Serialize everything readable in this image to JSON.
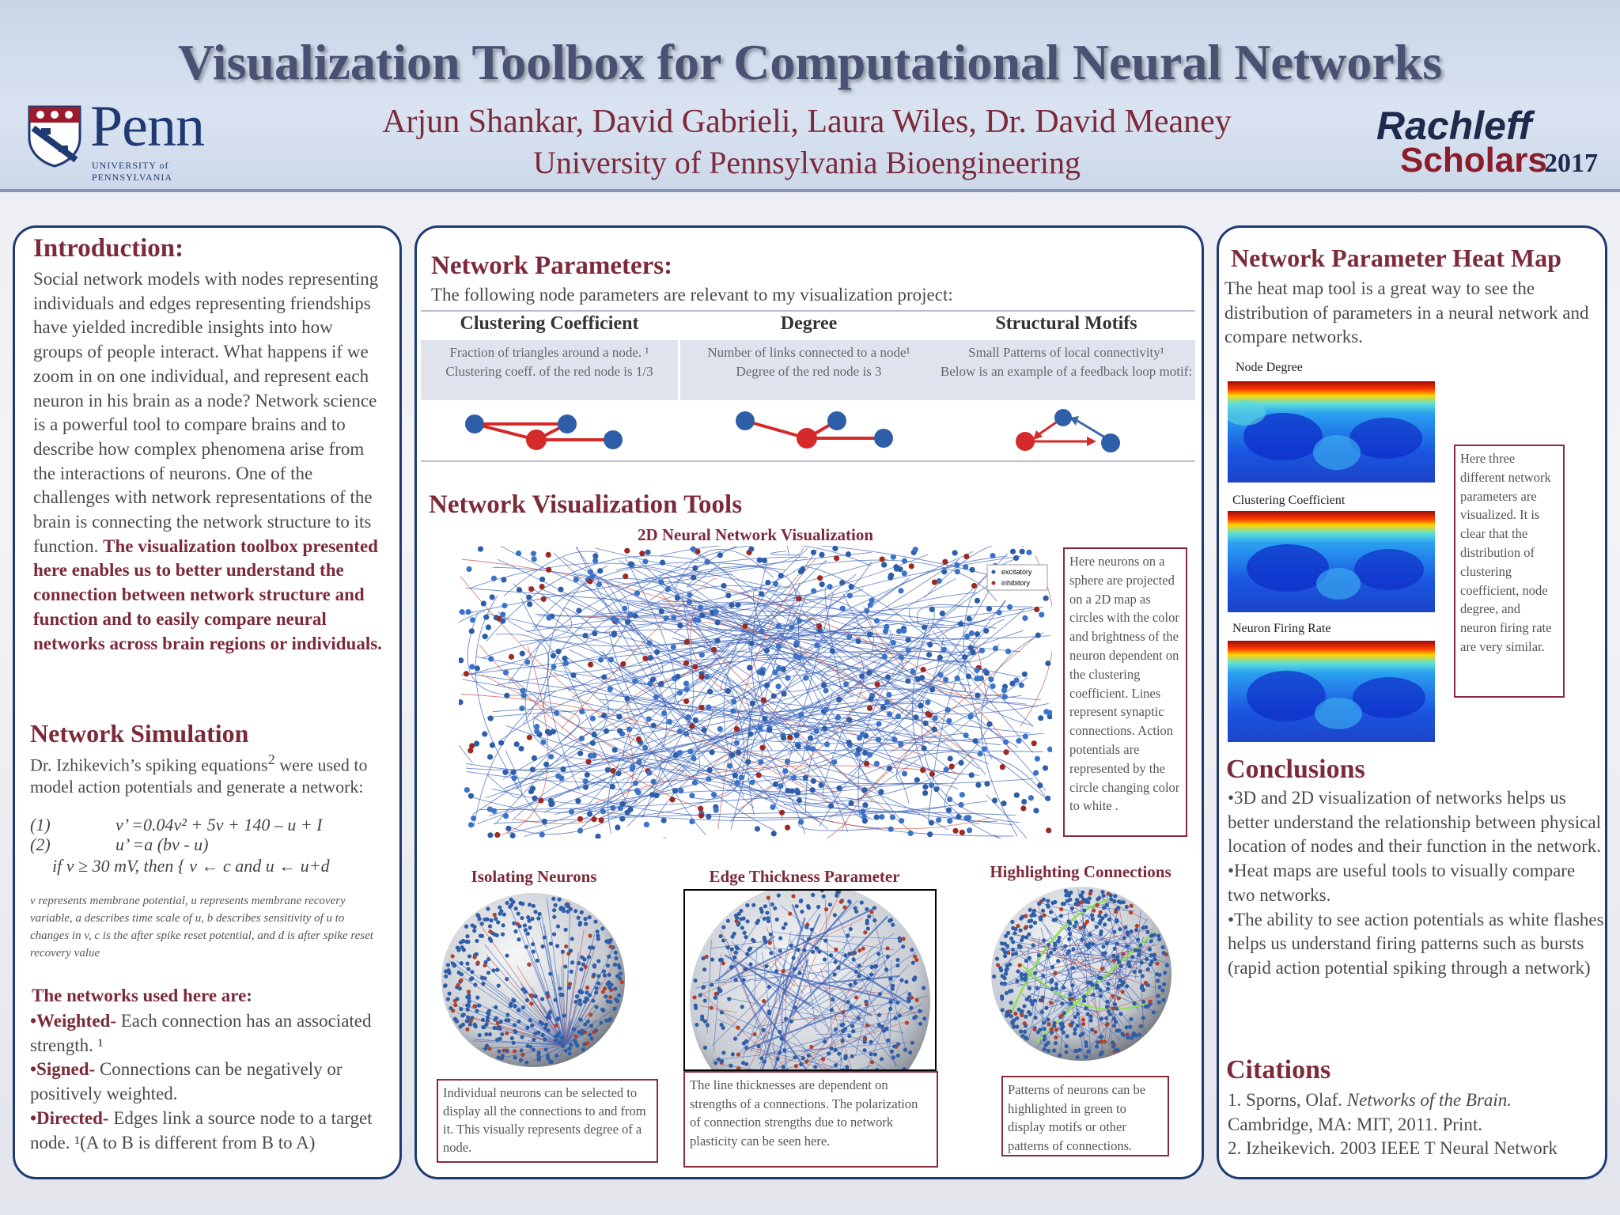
{
  "header": {
    "title": "Visualization Toolbox for Computational Neural Networks",
    "authors": "Arjun Shankar, David Gabrieli, Laura Wiles, Dr. David Meaney",
    "affiliation": "University of Pennsylvania Bioengineering",
    "penn_logo_text": "Penn",
    "penn_logo_sub": "UNIVERSITY of PENNSYLVANIA",
    "rachleff_line1": "Rachleff",
    "rachleff_line2": "Scholars",
    "rachleff_year": "2017"
  },
  "intro": {
    "heading": "Introduction:",
    "text": "Social network models with nodes representing individuals and edges representing friendships have yielded incredible insights into how groups of people interact. What happens if we zoom in on one individual, and represent each neuron in his brain as a node? Network science is a powerful tool to compare brains and to describe how complex phenomena arise from the interactions of neurons. One of the challenges with network representations of the brain is connecting the network structure to its function.",
    "bold_text": "The visualization toolbox presented here enables us to better understand the connection between network structure and function and to easily compare neural networks across brain regions or individuals."
  },
  "simulation": {
    "heading": "Network Simulation",
    "text_a": "Dr. Izhikevich’s  spiking equations",
    "text_sup": "2",
    "text_b": " were used to model action potentials and generate a network:",
    "eq1_num": "(1)",
    "eq1": "v’ =0.04v² + 5v + 140 – u + I",
    "eq2_num": "(2)",
    "eq2": "u’ =a (bv - u)",
    "eq3": "if v ≥ 30 mV, then { v ← c and u ← u+d",
    "note": "v represents membrane potential, u represents membrane recovery variable, a describes time scale of  u, b describes sensitivity of  u to changes in v, c is the after spike reset potential, and d is after spike reset recovery value"
  },
  "networks": {
    "heading": "The networks used here are:",
    "items": [
      {
        "term": "•Weighted-",
        "desc": " Each connection has an associated strength. ¹"
      },
      {
        "term": "•Signed-",
        "desc": " Connections can be negatively or positively weighted."
      },
      {
        "term": "•Directed-",
        "desc": " Edges link a source node to a target node. ¹(A to B is different from B to A)"
      }
    ]
  },
  "params": {
    "heading": "Network Parameters:",
    "intro": "The following node parameters are relevant to my visualization project:",
    "columns": [
      {
        "title": "Clustering Coefficient",
        "line1": "Fraction of triangles around a node. ¹",
        "line2": "Clustering coeff. of the red node is 1/3"
      },
      {
        "title": "Degree",
        "line1": "Number of links connected to a node¹",
        "line2": "Degree of the red node is 3"
      },
      {
        "title": "Structural Motifs",
        "line1": "Small Patterns of local connectivity¹",
        "line2": "Below is an example of a feedback loop motif:"
      }
    ]
  },
  "tools": {
    "heading": "Network Visualization Tools",
    "map_title": "2D Neural Network Visualization",
    "legend_exc": "excitatory",
    "legend_inh": "inhibitory",
    "map_note": "Here neurons on a sphere are projected on a 2D map as circles with the color and brightness of the neuron dependent on the clustering coefficient. Lines represent synaptic connections. Action potentials are represented by the circle changing color to white .",
    "sub1_title": "Isolating Neurons",
    "sub1_note": "Individual neurons can be selected to display all the connections to and from it. This visually represents degree of a node.",
    "sub2_title": "Edge Thickness Parameter",
    "sub2_note": "The line thicknesses are dependent on strengths of a connections. The polarization of connection strengths due to network plasticity can be seen here.",
    "sub3_title": "Highlighting Connections",
    "sub3_note": "Patterns of neurons can be highlighted in green to display motifs or other patterns of connections."
  },
  "heatmap": {
    "heading": "Network Parameter Heat Map",
    "intro": "The heat map tool is a great way to see the distribution of parameters  in a neural network and compare networks.",
    "labels": [
      "Node Degree",
      "Clustering Coefficient",
      "Neuron Firing Rate"
    ],
    "note": "Here three different network parameters are visualized. It is clear that the distribution of clustering coefficient, node degree, and neuron firing rate are very similar."
  },
  "conclusions": {
    "heading": "Conclusions",
    "items": [
      "•3D and 2D visualization of networks helps us better understand the relationship between physical location of nodes and their function in the network.",
      "•Heat maps are useful tools to visually compare two networks.",
      "•The ability to see action potentials as white flashes helps us understand firing patterns such as bursts (rapid action potential spiking through a network)"
    ]
  },
  "citations": {
    "heading": "Citations",
    "c1_a": "1. Sporns, Olaf. ",
    "c1_b": "Networks of  the Brain.",
    "c1_c": "Cambridge, MA: MIT, 2011. Print.",
    "c2": "2. Izheikevich. 2003 IEEE T Neural Network"
  },
  "colors": {
    "maroon": "#7c2a3a",
    "navy": "#1f3a73",
    "node_blue": "#2f5ea8",
    "node_red": "#d42a2a"
  }
}
